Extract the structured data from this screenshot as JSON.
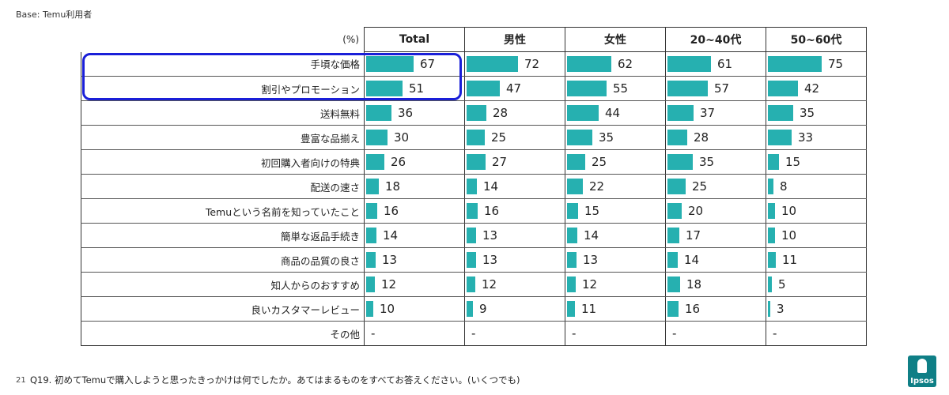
{
  "base_label": "Base: Temu利用者",
  "footnote": "Q19. 初めてTemuで購入しようと思ったきっかけは何でしたか。あてはまるものをすべてお答えください。(いくつでも)",
  "page_number": "21",
  "logo_text": "Ipsos",
  "colors": {
    "bar": "#26b0b0",
    "highlight": "#1a1fd8"
  },
  "chart_data": {
    "type": "bar",
    "unit_label": "(%)",
    "categories": [
      "手頃な価格",
      "割引やプロモーション",
      "送料無料",
      "豊富な品揃え",
      "初回購入者向けの特典",
      "配送の速さ",
      "Temuという名前を知っていたこと",
      "簡単な返品手続き",
      "商品の品質の良さ",
      "知人からのおすすめ",
      "良いカスタマーレビュー",
      "その他"
    ],
    "series": [
      {
        "name": "Total",
        "values": [
          67,
          51,
          36,
          30,
          26,
          18,
          16,
          14,
          13,
          12,
          10,
          null
        ]
      },
      {
        "name": "男性",
        "values": [
          72,
          47,
          28,
          25,
          27,
          14,
          16,
          13,
          13,
          12,
          9,
          null
        ]
      },
      {
        "name": "女性",
        "values": [
          62,
          55,
          44,
          35,
          25,
          22,
          15,
          14,
          13,
          12,
          11,
          null
        ]
      },
      {
        "name": "20~40代",
        "values": [
          61,
          57,
          37,
          28,
          35,
          25,
          20,
          17,
          14,
          18,
          16,
          null
        ]
      },
      {
        "name": "50~60代",
        "values": [
          75,
          42,
          35,
          33,
          15,
          8,
          10,
          10,
          11,
          5,
          3,
          null
        ]
      }
    ],
    "missing_label": "-",
    "highlighted_categories": [
      "手頃な価格",
      "割引やプロモーション"
    ]
  }
}
